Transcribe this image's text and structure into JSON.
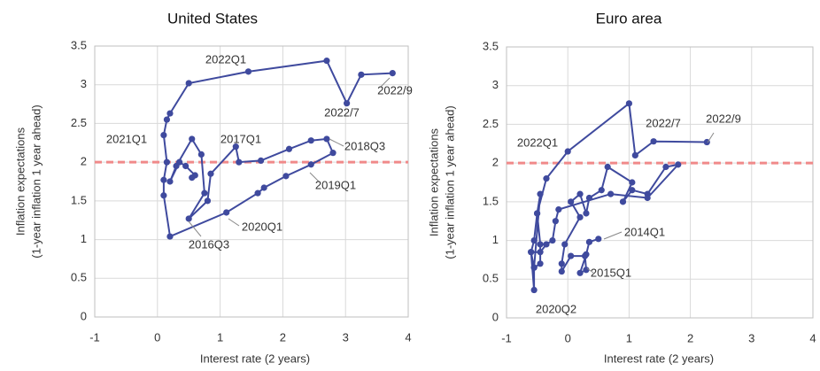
{
  "chart_data": [
    {
      "type": "scatter",
      "connected": true,
      "title": "United States",
      "xlabel": "Interest rate (2 years)",
      "ylabel": [
        "Inflation expectations",
        "(1-year inflation 1 year ahead)"
      ],
      "xlim": [
        -1,
        4
      ],
      "xticks": [
        -1,
        0,
        1,
        2,
        3,
        4
      ],
      "ylim": [
        0,
        3.5
      ],
      "yticks": [
        0,
        0.5,
        1,
        1.5,
        2,
        2.5,
        3,
        3.5
      ],
      "grid": true,
      "reference_line": {
        "y": 2,
        "color": "#f08a8a"
      },
      "x": [
        0.55,
        0.6,
        0.45,
        0.35,
        0.2,
        0.3,
        0.55,
        0.7,
        0.75,
        0.5,
        0.8,
        0.85,
        1.25,
        1.3,
        1.65,
        2.1,
        2.45,
        2.7,
        2.8,
        2.45,
        2.05,
        1.7,
        1.6,
        1.1,
        0.2,
        0.1,
        0.1,
        0.15,
        0.1,
        0.15,
        0.2,
        0.5,
        1.45,
        2.7,
        3.02,
        3.25,
        3.75
      ],
      "series": [
        {
          "color": "#3f4a9e",
          "values": [
            1.8,
            1.83,
            1.95,
            2.0,
            1.75,
            1.95,
            2.3,
            2.1,
            1.6,
            1.27,
            1.5,
            1.85,
            2.2,
            2.0,
            2.02,
            2.17,
            2.28,
            2.3,
            2.12,
            1.97,
            1.82,
            1.67,
            1.6,
            1.35,
            1.04,
            1.57,
            1.77,
            2.0,
            2.35,
            2.55,
            2.63,
            3.02,
            3.17,
            3.31,
            2.76,
            3.13,
            3.15
          ]
        }
      ],
      "annotations": [
        "2022Q1",
        "2017Q1",
        "2021Q1",
        "2018Q3",
        "2019Q1",
        "2020Q1",
        "2016Q3",
        "2022/7",
        "2022/9"
      ]
    },
    {
      "type": "scatter",
      "connected": true,
      "title": "Euro area",
      "xlabel": "Interest rate (2 years)",
      "ylabel": [
        "Inflation expectations",
        "(1-year inflation 1 year ahead)"
      ],
      "xlim": [
        -1,
        4
      ],
      "xticks": [
        -1,
        0,
        1,
        2,
        3,
        4
      ],
      "ylim": [
        0,
        3.5
      ],
      "yticks": [
        0,
        0.5,
        1,
        1.5,
        2,
        2.5,
        3,
        3.5
      ],
      "grid": true,
      "reference_line": {
        "y": 2,
        "color": "#f08a8a"
      },
      "x": [
        0.5,
        0.35,
        0.3,
        0.2,
        0.3,
        0.28,
        0.05,
        -0.1,
        -0.1,
        -0.05,
        0.2,
        0.05,
        0.2,
        0.3,
        0.35,
        0.55,
        0.65,
        1.05,
        0.9,
        1.05,
        1.3,
        1.6,
        1.8,
        1.3,
        0.7,
        -0.15,
        -0.2,
        -0.25,
        -0.35,
        -0.45,
        -0.6,
        -0.55,
        -0.45,
        -0.45,
        -0.5,
        -0.45,
        -0.55,
        -0.55,
        -0.6,
        -0.55,
        -0.5,
        -0.35,
        0.0,
        1.0,
        1.1,
        1.4,
        2.27
      ],
      "series": [
        {
          "color": "#3f4a9e",
          "values": [
            1.02,
            0.98,
            0.82,
            0.58,
            0.62,
            0.8,
            0.8,
            0.6,
            0.7,
            0.95,
            1.3,
            1.5,
            1.6,
            1.35,
            1.55,
            1.65,
            1.95,
            1.75,
            1.5,
            1.65,
            1.6,
            1.95,
            1.98,
            1.55,
            1.6,
            1.4,
            1.25,
            1.0,
            0.95,
            0.85,
            0.85,
            0.65,
            0.7,
            0.95,
            1.35,
            1.6,
            0.65,
            0.36,
            0.85,
            1.0,
            1.35,
            1.8,
            2.15,
            2.77,
            2.1,
            2.28,
            2.27
          ]
        }
      ],
      "annotations": [
        "2022/7",
        "2022/9",
        "2022Q1",
        "2014Q1",
        "2015Q1",
        "2020Q2"
      ]
    }
  ]
}
